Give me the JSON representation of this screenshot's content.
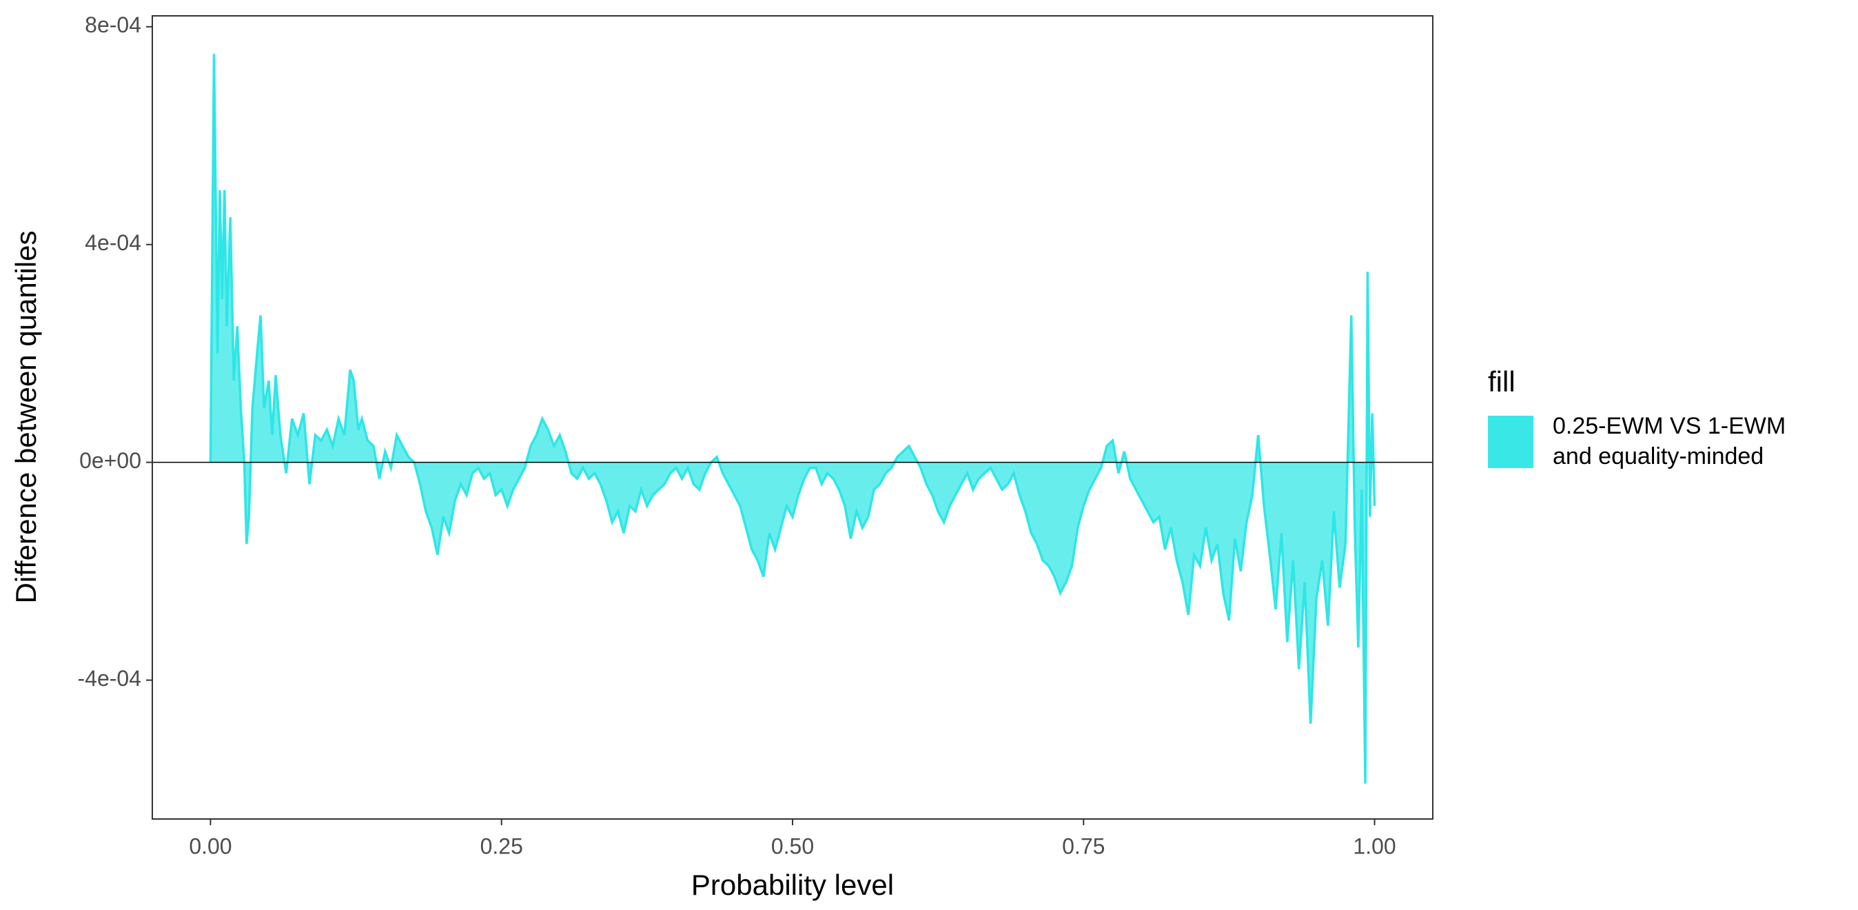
{
  "chart_data": {
    "type": "area",
    "x_label": "Probability level",
    "y_label": "Difference between quantiles",
    "legend_title": "fill",
    "xlim": [
      -0.05,
      1.05
    ],
    "ylim": [
      -0.000655,
      0.00082
    ],
    "xticks": [
      {
        "value": 0,
        "label": "0.00"
      },
      0.25,
      {
        "value": 0.5,
        "label": "0.50"
      },
      0.75,
      {
        "value": 1,
        "label": "1.00"
      }
    ],
    "yticks": [
      {
        "value": -0.0004,
        "label": "-4e-04"
      },
      {
        "value": 0,
        "label": "0e+00"
      },
      {
        "value": 0.0004,
        "label": "4e-04"
      },
      {
        "value": 0.0008,
        "label": "8e-04"
      }
    ],
    "x": [
      0.0,
      0.003,
      0.006,
      0.008,
      0.01,
      0.012,
      0.014,
      0.017,
      0.02,
      0.023,
      0.026,
      0.029,
      0.031,
      0.033,
      0.036,
      0.04,
      0.043,
      0.046,
      0.05,
      0.053,
      0.056,
      0.06,
      0.065,
      0.07,
      0.075,
      0.08,
      0.085,
      0.09,
      0.095,
      0.1,
      0.105,
      0.11,
      0.115,
      0.12,
      0.123,
      0.127,
      0.13,
      0.135,
      0.14,
      0.145,
      0.15,
      0.155,
      0.16,
      0.165,
      0.17,
      0.175,
      0.18,
      0.185,
      0.19,
      0.195,
      0.2,
      0.205,
      0.21,
      0.215,
      0.22,
      0.225,
      0.23,
      0.235,
      0.24,
      0.245,
      0.25,
      0.255,
      0.26,
      0.265,
      0.27,
      0.275,
      0.28,
      0.285,
      0.29,
      0.295,
      0.3,
      0.305,
      0.31,
      0.315,
      0.32,
      0.325,
      0.33,
      0.335,
      0.34,
      0.345,
      0.35,
      0.355,
      0.36,
      0.365,
      0.37,
      0.375,
      0.38,
      0.385,
      0.39,
      0.395,
      0.4,
      0.405,
      0.41,
      0.415,
      0.42,
      0.425,
      0.43,
      0.435,
      0.44,
      0.445,
      0.45,
      0.455,
      0.46,
      0.465,
      0.47,
      0.475,
      0.48,
      0.485,
      0.49,
      0.495,
      0.5,
      0.505,
      0.51,
      0.515,
      0.52,
      0.525,
      0.53,
      0.535,
      0.54,
      0.545,
      0.55,
      0.555,
      0.56,
      0.565,
      0.57,
      0.575,
      0.58,
      0.585,
      0.59,
      0.595,
      0.6,
      0.605,
      0.61,
      0.615,
      0.62,
      0.625,
      0.63,
      0.635,
      0.64,
      0.645,
      0.65,
      0.655,
      0.66,
      0.665,
      0.67,
      0.675,
      0.68,
      0.685,
      0.69,
      0.695,
      0.7,
      0.705,
      0.71,
      0.715,
      0.72,
      0.725,
      0.73,
      0.735,
      0.74,
      0.745,
      0.75,
      0.755,
      0.76,
      0.765,
      0.77,
      0.775,
      0.78,
      0.785,
      0.79,
      0.795,
      0.8,
      0.805,
      0.81,
      0.815,
      0.82,
      0.825,
      0.83,
      0.835,
      0.84,
      0.845,
      0.85,
      0.855,
      0.86,
      0.865,
      0.87,
      0.875,
      0.88,
      0.885,
      0.89,
      0.895,
      0.9,
      0.905,
      0.91,
      0.915,
      0.92,
      0.925,
      0.93,
      0.935,
      0.94,
      0.945,
      0.95,
      0.955,
      0.96,
      0.965,
      0.97,
      0.975,
      0.98,
      0.983,
      0.986,
      0.989,
      0.992,
      0.994,
      0.996,
      0.998,
      1.0
    ],
    "series": [
      {
        "name": "0.25-EWM VS 1-EWM\nand equality-minded",
        "color": "#2ee6e6",
        "values": [
          0,
          0.00075,
          0.0002,
          0.0005,
          0.0003,
          0.0005,
          0.00025,
          0.00045,
          0.00015,
          0.00025,
          0.0001,
          0,
          -0.00015,
          -0.0001,
          0.0001,
          0.0002,
          0.00027,
          0.0001,
          0.00015,
          5e-05,
          0.00016,
          5e-05,
          -2e-05,
          8e-05,
          5e-05,
          9e-05,
          -4e-05,
          5e-05,
          4e-05,
          6e-05,
          3e-05,
          8e-05,
          5e-05,
          0.00017,
          0.00015,
          6e-05,
          8e-05,
          4e-05,
          3e-05,
          -3e-05,
          2e-05,
          -1e-05,
          5e-05,
          3e-05,
          1e-05,
          0,
          -4e-05,
          -9e-05,
          -0.00012,
          -0.00017,
          -0.0001,
          -0.00013,
          -7e-05,
          -4e-05,
          -6e-05,
          -2e-05,
          -1e-05,
          -3e-05,
          -2e-05,
          -6e-05,
          -5e-05,
          -8e-05,
          -5e-05,
          -3e-05,
          -1e-05,
          3e-05,
          5e-05,
          8e-05,
          6e-05,
          3e-05,
          5e-05,
          2e-05,
          -2e-05,
          -3e-05,
          -1e-05,
          -3e-05,
          -2e-05,
          -4e-05,
          -7e-05,
          -0.00011,
          -9e-05,
          -0.00013,
          -8e-05,
          -9e-05,
          -5e-05,
          -8e-05,
          -6e-05,
          -5e-05,
          -4e-05,
          -2e-05,
          -1e-05,
          -3e-05,
          -1e-05,
          -4e-05,
          -5e-05,
          -2e-05,
          0,
          1e-05,
          -2e-05,
          -4e-05,
          -6e-05,
          -8e-05,
          -0.00012,
          -0.00016,
          -0.00018,
          -0.00021,
          -0.00013,
          -0.00016,
          -0.00012,
          -8e-05,
          -0.0001,
          -6e-05,
          -3e-05,
          -1e-05,
          -1e-05,
          -4e-05,
          -2e-05,
          -3e-05,
          -5e-05,
          -8e-05,
          -0.00014,
          -9e-05,
          -0.00012,
          -0.0001,
          -5e-05,
          -4e-05,
          -2e-05,
          -1e-05,
          1e-05,
          2e-05,
          3e-05,
          1e-05,
          -1e-05,
          -4e-05,
          -6e-05,
          -9e-05,
          -0.00011,
          -8e-05,
          -6e-05,
          -4e-05,
          -2e-05,
          -5e-05,
          -3e-05,
          -2e-05,
          -1e-05,
          -3e-05,
          -5e-05,
          -4e-05,
          -2e-05,
          -6e-05,
          -9e-05,
          -0.00013,
          -0.00015,
          -0.00018,
          -0.00019,
          -0.00021,
          -0.00024,
          -0.00022,
          -0.00019,
          -0.00012,
          -8e-05,
          -5e-05,
          -3e-05,
          -1e-05,
          3e-05,
          4e-05,
          -2e-05,
          2e-05,
          -3e-05,
          -5e-05,
          -7e-05,
          -9e-05,
          -0.00011,
          -0.0001,
          -0.00016,
          -0.00012,
          -0.00018,
          -0.00022,
          -0.00028,
          -0.00017,
          -0.00019,
          -0.00012,
          -0.00018,
          -0.00015,
          -0.00024,
          -0.00029,
          -0.00014,
          -0.0002,
          -0.00011,
          -6e-05,
          5e-05,
          -8e-05,
          -0.00017,
          -0.00027,
          -0.00013,
          -0.00033,
          -0.00018,
          -0.00038,
          -0.00022,
          -0.00048,
          -0.00025,
          -0.00018,
          -0.0003,
          -9e-05,
          -0.00023,
          -0.00015,
          0.00027,
          -0.00012,
          -0.00034,
          -5e-05,
          -0.00059,
          0.00035,
          -0.0001,
          9e-05,
          -8e-05
        ]
      }
    ]
  }
}
